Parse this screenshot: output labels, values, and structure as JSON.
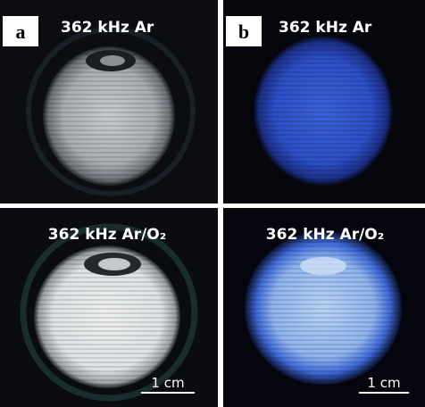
{
  "panels": [
    {
      "label": "a",
      "caption": "362 kHz Ar"
    },
    {
      "label": "b",
      "caption": "362 kHz Ar"
    },
    {
      "caption": "362 kHz Ar/O₂",
      "scale_bar": "1 cm"
    },
    {
      "caption": "362 kHz Ar/O₂",
      "scale_bar": "1 cm"
    }
  ]
}
